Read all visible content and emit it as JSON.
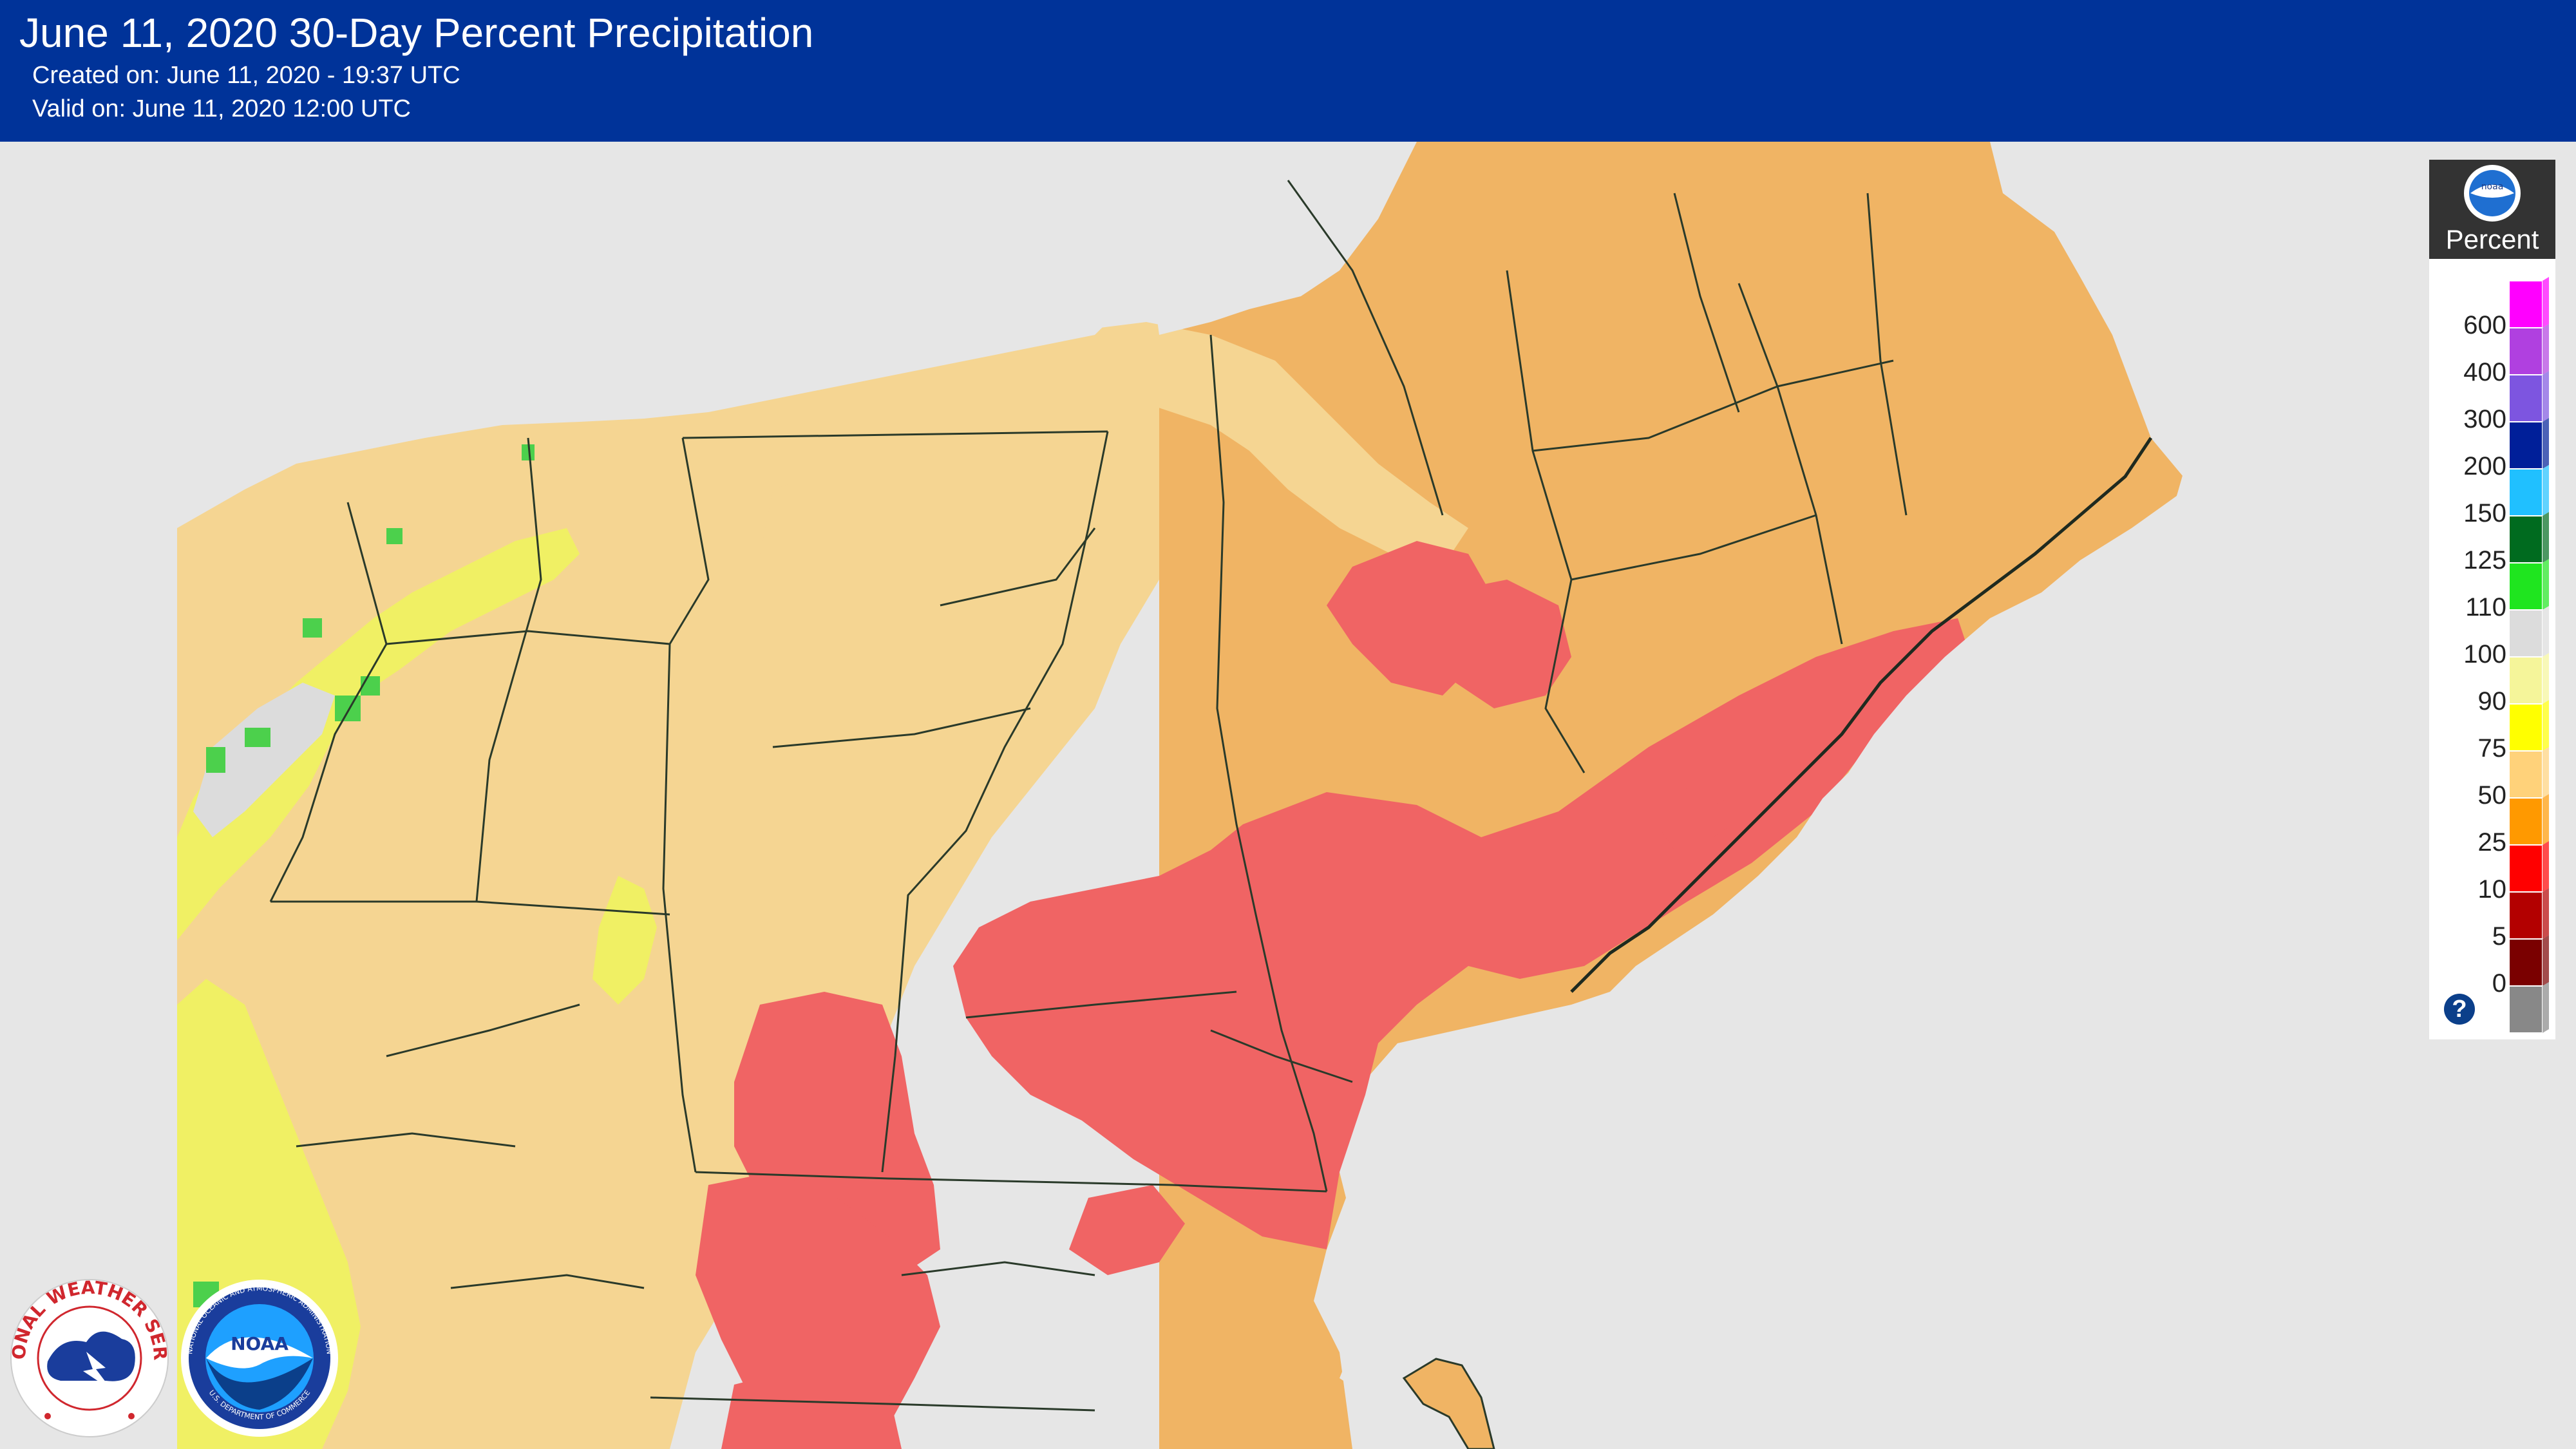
{
  "header": {
    "title": "June 11, 2020 30-Day Percent Precipitation",
    "created": "Created on: June 11, 2020 - 19:37 UTC",
    "valid": "Valid on: June 11, 2020 12:00 UTC"
  },
  "legend": {
    "title": "Percent",
    "logo_text": "noaa",
    "help_symbol": "?",
    "classes": [
      {
        "label": "600",
        "color": "#ff00ff"
      },
      {
        "label": "400",
        "color": "#b040e0"
      },
      {
        "label": "300",
        "color": "#7d55e0"
      },
      {
        "label": "200",
        "color": "#001f99"
      },
      {
        "label": "150",
        "color": "#20c0ff"
      },
      {
        "label": "125",
        "color": "#006b1f"
      },
      {
        "label": "110",
        "color": "#1fe51f"
      },
      {
        "label": "100",
        "color": "#dcdcdc"
      },
      {
        "label": "90",
        "color": "#f5f59a"
      },
      {
        "label": "75",
        "color": "#ffff00"
      },
      {
        "label": "50",
        "color": "#ffd27a"
      },
      {
        "label": "25",
        "color": "#ff9900"
      },
      {
        "label": "10",
        "color": "#ff0000"
      },
      {
        "label": "5",
        "color": "#b30000"
      },
      {
        "label": "0",
        "color": "#7a0000"
      },
      {
        "label": "",
        "color": "#888888"
      }
    ]
  },
  "logos": {
    "nws_text": "NATIONAL WEATHER SERVICE",
    "noaa_ring_text": "NATIONAL OCEANIC AND ATMOSPHERIC ADMINISTRATION",
    "noaa_ring_bottom": "U.S. DEPARTMENT OF COMMERCE",
    "noaa_center": "NOAA"
  },
  "map_colors": {
    "background": "#e6e6e6",
    "pct_25_50": "#f0b464",
    "pct_50_75": "#f5d592",
    "pct_75_90": "#f0f064",
    "pct_90_100": "#dcdcdc",
    "pct_100_110": "#4cd04c",
    "pct_10_25": "#f06464",
    "boundary": "#2a3a2a"
  }
}
